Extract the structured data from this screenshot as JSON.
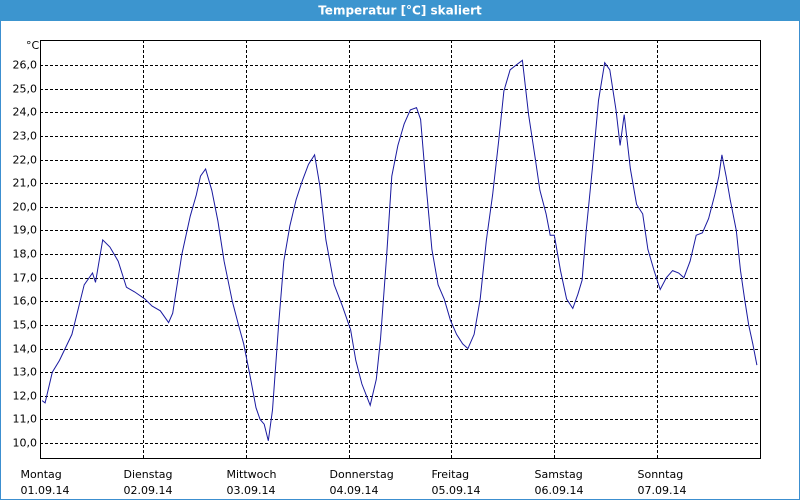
{
  "chart_data": {
    "type": "line",
    "title": "Temperatur [°C] skaliert",
    "ylabel": "°C",
    "xlim": [
      0,
      7
    ],
    "xticks": [
      {
        "value": 0,
        "label": "01.09.14"
      },
      {
        "value": 1,
        "label": "02.09.14"
      },
      {
        "value": 2,
        "label": "03.09.14"
      },
      {
        "value": 3,
        "label": "04.09.14"
      },
      {
        "value": 4,
        "label": "05.09.14"
      },
      {
        "value": 5,
        "label": "06.09.14"
      },
      {
        "value": 6,
        "label": "07.09.14"
      }
    ],
    "xtick_days": [
      "Montag",
      "Dienstag",
      "Mittwoch",
      "Donnerstag",
      "Freitag",
      "Samstag",
      "Sonntag"
    ],
    "ylim": [
      9.37,
      27.06
    ],
    "yticks": [
      {
        "value": 10,
        "label": "10,0"
      },
      {
        "value": 11,
        "label": "11,0"
      },
      {
        "value": 12,
        "label": "12,0"
      },
      {
        "value": 13,
        "label": "13,0"
      },
      {
        "value": 14,
        "label": "14,0"
      },
      {
        "value": 15,
        "label": "15,0"
      },
      {
        "value": 16,
        "label": "16,0"
      },
      {
        "value": 17,
        "label": "17,0"
      },
      {
        "value": 18,
        "label": "18,0"
      },
      {
        "value": 19,
        "label": "19,0"
      },
      {
        "value": 20,
        "label": "20,0"
      },
      {
        "value": 21,
        "label": "21,0"
      },
      {
        "value": 22,
        "label": "22,0"
      },
      {
        "value": 23,
        "label": "23,0"
      },
      {
        "value": 24,
        "label": "24,0"
      },
      {
        "value": 25,
        "label": "25,0"
      },
      {
        "value": 26,
        "label": "26,0"
      }
    ],
    "grid": true,
    "x": [
      0.02,
      0.05,
      0.12,
      0.19,
      0.31,
      0.43,
      0.51,
      0.54,
      0.61,
      0.68,
      0.76,
      0.84,
      0.92,
      1.02,
      1.09,
      1.17,
      1.25,
      1.29,
      1.38,
      1.46,
      1.52,
      1.56,
      1.61,
      1.67,
      1.73,
      1.79,
      1.87,
      1.93,
      1.98,
      2.04,
      2.1,
      2.14,
      2.18,
      2.22,
      2.26,
      2.32,
      2.37,
      2.43,
      2.49,
      2.55,
      2.61,
      2.67,
      2.72,
      2.78,
      2.86,
      2.94,
      3.02,
      3.07,
      3.13,
      3.21,
      3.27,
      3.31,
      3.37,
      3.42,
      3.48,
      3.54,
      3.6,
      3.66,
      3.7,
      3.75,
      3.81,
      3.87,
      3.93,
      3.99,
      4.05,
      4.11,
      4.16,
      4.22,
      4.28,
      4.34,
      4.4,
      4.46,
      4.51,
      4.57,
      4.63,
      4.69,
      4.75,
      4.81,
      4.86,
      4.92,
      4.96,
      5.0,
      5.06,
      5.12,
      5.18,
      5.23,
      5.27,
      5.31,
      5.37,
      5.43,
      5.49,
      5.54,
      5.6,
      5.64,
      5.68,
      5.74,
      5.8,
      5.86,
      5.91,
      5.97,
      6.03,
      6.09,
      6.15,
      6.21,
      6.26,
      6.32,
      6.38,
      6.44,
      6.5,
      6.56,
      6.6,
      6.63,
      6.67,
      6.71,
      6.77,
      6.81,
      6.85,
      6.89,
      6.93,
      6.97
    ],
    "series": [
      {
        "color": "#1a1aa0",
        "values": [
          11.8,
          11.7,
          13.0,
          13.5,
          14.6,
          16.7,
          17.2,
          16.8,
          18.6,
          18.3,
          17.7,
          16.6,
          16.4,
          16.1,
          15.8,
          15.6,
          15.1,
          15.5,
          18.0,
          19.6,
          20.5,
          21.3,
          21.6,
          20.7,
          19.4,
          17.7,
          16.0,
          15.0,
          14.2,
          12.9,
          11.5,
          11.0,
          10.8,
          10.1,
          11.4,
          15.0,
          17.7,
          19.2,
          20.3,
          21.1,
          21.8,
          22.2,
          20.9,
          18.6,
          16.7,
          15.8,
          14.8,
          13.5,
          12.5,
          11.6,
          12.7,
          14.4,
          17.9,
          21.3,
          22.6,
          23.5,
          24.1,
          24.2,
          23.7,
          21.1,
          18.2,
          16.7,
          16.1,
          15.2,
          14.6,
          14.2,
          14.0,
          14.6,
          16.1,
          18.6,
          20.5,
          22.8,
          24.9,
          25.8,
          26.0,
          26.2,
          23.9,
          22.2,
          20.7,
          19.7,
          18.8,
          18.8,
          17.3,
          16.1,
          15.7,
          16.3,
          16.9,
          19.0,
          21.6,
          24.5,
          26.1,
          25.8,
          24.1,
          22.6,
          23.9,
          21.6,
          20.1,
          19.7,
          18.2,
          17.3,
          16.5,
          17.0,
          17.3,
          17.2,
          17.0,
          17.7,
          18.8,
          18.9,
          19.5,
          20.5,
          21.3,
          22.2,
          21.3,
          20.3,
          19.0,
          17.3,
          16.1,
          15.0,
          14.2,
          13.3
        ]
      }
    ]
  }
}
